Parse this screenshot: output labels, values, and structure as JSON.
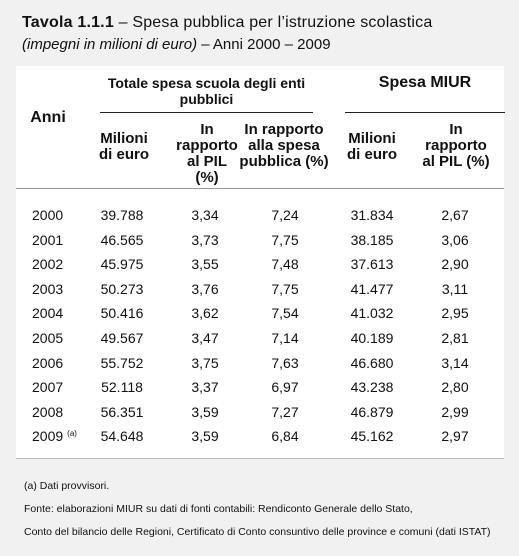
{
  "title": {
    "label": "Tavola 1.1.1",
    "text": "– Spesa pubblica per l’istruzione scolastica",
    "subtitle_italic": "(impegni in milioni di euro)",
    "subtitle": "– Anni 2000 – 2009"
  },
  "table": {
    "year_header": "Anni",
    "groups": [
      "Totale spesa scuola degli enti pubblici",
      "Spesa MIUR"
    ],
    "columns": [
      "Milioni di euro",
      "In rapporto al PIL (%)",
      "In rapporto alla spesa pubblica (%)",
      "Milioni di euro",
      "In rapporto al PIL (%)"
    ],
    "rows": [
      {
        "year": "2000",
        "values": [
          "39.788",
          "3,34",
          "7,24",
          "31.834",
          "2,67"
        ]
      },
      {
        "year": "2001",
        "values": [
          "46.565",
          "3,73",
          "7,75",
          "38.185",
          "3,06"
        ]
      },
      {
        "year": "2002",
        "values": [
          "45.975",
          "3,55",
          "7,48",
          "37.613",
          "2,90"
        ]
      },
      {
        "year": "2003",
        "values": [
          "50.273",
          "3,76",
          "7,75",
          "41.477",
          "3,11"
        ]
      },
      {
        "year": "2004",
        "values": [
          "50.416",
          "3,62",
          "7,54",
          "41.032",
          "2,95"
        ]
      },
      {
        "year": "2005",
        "values": [
          "49.567",
          "3,47",
          "7,14",
          "40.189",
          "2,81"
        ]
      },
      {
        "year": "2006",
        "values": [
          "55.752",
          "3,75",
          "7,63",
          "46.680",
          "3,14"
        ]
      },
      {
        "year": "2007",
        "values": [
          "52.118",
          "3,37",
          "6,97",
          "43.238",
          "2,80"
        ]
      },
      {
        "year": "2008",
        "values": [
          "56.351",
          "3,59",
          "7,27",
          "46.879",
          "2,99"
        ]
      },
      {
        "year": "2009",
        "note": "(a)",
        "values": [
          "54.648",
          "3,59",
          "6,84",
          "45.162",
          "2,97"
        ]
      }
    ]
  },
  "footnotes": [
    "(a) Dati provvisori.",
    "Fonte: elaborazioni MIUR su dati di fonti contabili: Rendiconto Generale dello Stato,",
    "Conto del bilancio delle Regioni, Certificato di Conto consuntivo delle province e comuni (dati ISTAT)"
  ]
}
